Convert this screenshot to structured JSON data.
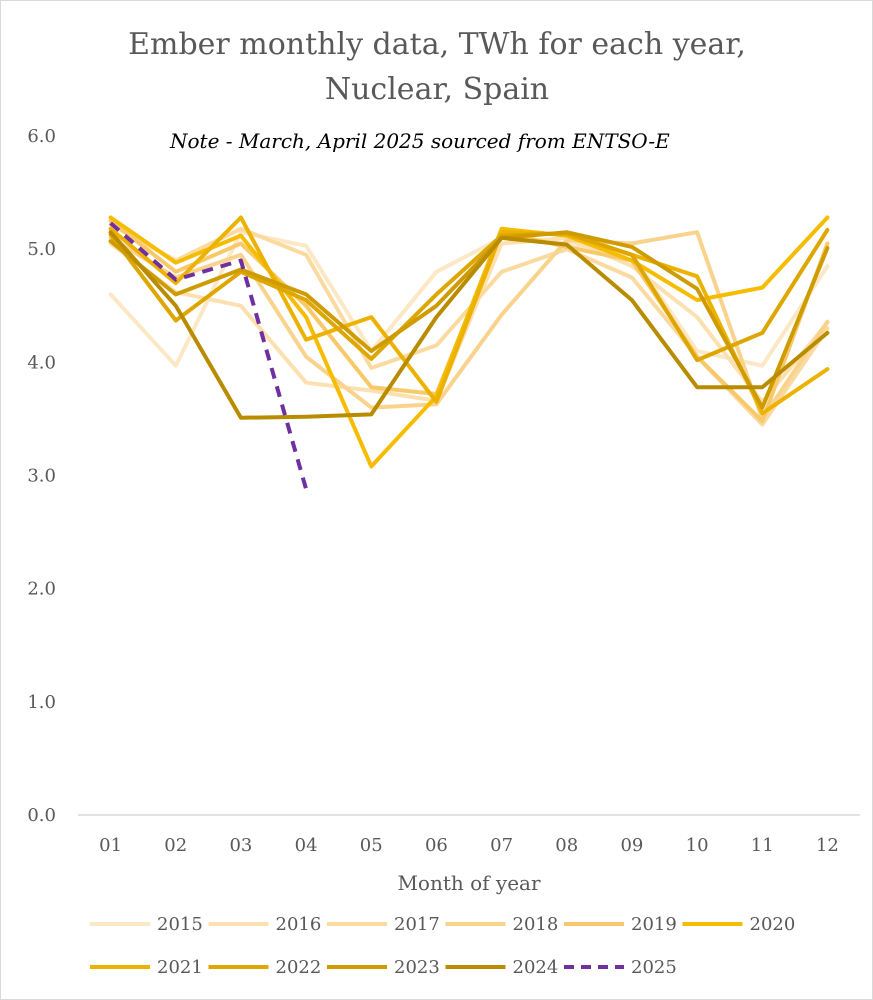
{
  "chart_data": {
    "type": "line",
    "title": "Ember monthly data, TWh for each year, Nuclear, Spain",
    "title_lines": [
      "Ember monthly data, TWh for each year,",
      "Nuclear, Spain"
    ],
    "annotation": "Note - March, April 2025 sourced from ENTSO-E",
    "xlabel": "Month of year",
    "ylabel": "",
    "categories": [
      "01",
      "02",
      "03",
      "04",
      "05",
      "06",
      "07",
      "08",
      "09",
      "10",
      "11",
      "12"
    ],
    "yticks": [
      "0.0",
      "1.0",
      "2.0",
      "3.0",
      "4.0",
      "5.0",
      "6.0"
    ],
    "ylim": [
      0,
      6
    ],
    "grid": false,
    "legend_position": "bottom",
    "series": [
      {
        "name": "2015",
        "color": "#FCE8C5",
        "dashed": false,
        "values": [
          4.6,
          3.97,
          5.15,
          5.03,
          4.1,
          4.8,
          5.1,
          5.05,
          4.95,
          4.1,
          3.97,
          4.85
        ]
      },
      {
        "name": "2016",
        "color": "#FCE0B0",
        "dashed": false,
        "values": [
          5.05,
          4.62,
          4.5,
          3.82,
          3.75,
          3.66,
          5.05,
          5.1,
          4.85,
          4.4,
          3.65,
          4.35
        ]
      },
      {
        "name": "2017",
        "color": "#FBDAA0",
        "dashed": false,
        "values": [
          5.22,
          4.9,
          5.18,
          4.95,
          3.95,
          4.15,
          4.8,
          5.0,
          4.75,
          4.05,
          3.45,
          4.3
        ]
      },
      {
        "name": "2018",
        "color": "#F9D38C",
        "dashed": false,
        "values": [
          5.1,
          4.75,
          4.95,
          4.05,
          3.6,
          3.63,
          4.42,
          5.08,
          5.05,
          5.15,
          3.5,
          4.36
        ]
      },
      {
        "name": "2019",
        "color": "#F8C96A",
        "dashed": false,
        "values": [
          5.25,
          4.8,
          5.05,
          4.5,
          3.78,
          3.72,
          5.15,
          5.02,
          4.9,
          4.05,
          3.48,
          5.05
        ]
      },
      {
        "name": "2020",
        "color": "#F5BC00",
        "dashed": false,
        "values": [
          5.28,
          4.88,
          5.12,
          4.4,
          3.08,
          3.7,
          5.18,
          5.12,
          4.9,
          4.55,
          4.66,
          5.28
        ]
      },
      {
        "name": "2021",
        "color": "#EDB200",
        "dashed": false,
        "values": [
          5.18,
          4.7,
          5.28,
          4.2,
          4.4,
          3.65,
          5.15,
          5.13,
          4.95,
          4.76,
          3.55,
          3.94
        ]
      },
      {
        "name": "2022",
        "color": "#DEA600",
        "dashed": false,
        "values": [
          5.13,
          4.37,
          4.8,
          4.55,
          4.03,
          4.6,
          5.12,
          5.14,
          4.95,
          4.02,
          4.26,
          5.17
        ]
      },
      {
        "name": "2023",
        "color": "#CE9C00",
        "dashed": false,
        "values": [
          5.07,
          4.6,
          4.82,
          4.6,
          4.1,
          4.5,
          5.1,
          5.15,
          5.02,
          4.65,
          3.6,
          5.01
        ]
      },
      {
        "name": "2024",
        "color": "#B98C00",
        "dashed": false,
        "values": [
          5.15,
          4.5,
          3.51,
          3.52,
          3.54,
          4.4,
          5.1,
          5.04,
          4.55,
          3.78,
          3.78,
          4.26
        ]
      },
      {
        "name": "2025",
        "color": "#7030A0",
        "dashed": true,
        "values": [
          5.23,
          4.73,
          4.9,
          2.88,
          null,
          null,
          null,
          null,
          null,
          null,
          null,
          null
        ]
      }
    ]
  }
}
